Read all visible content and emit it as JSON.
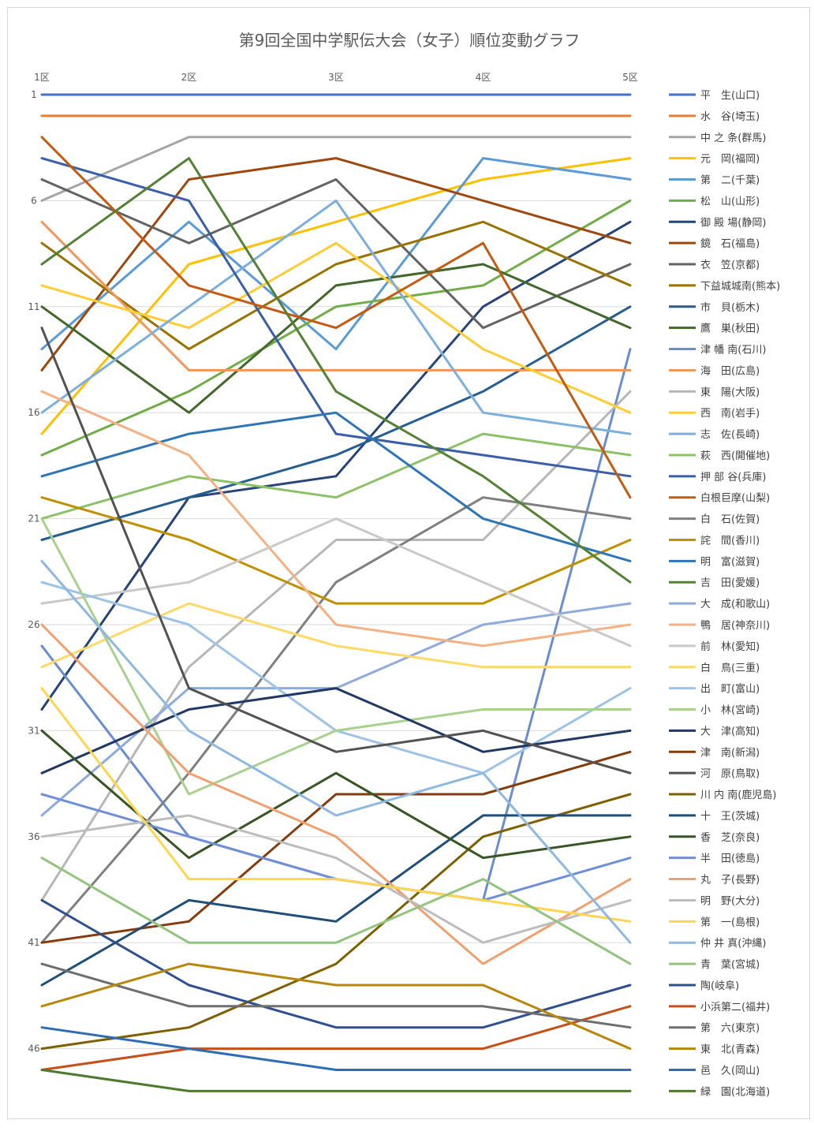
{
  "chart_data": {
    "type": "line",
    "title": "第9回全国中学駅伝大会（女子）順位変動グラフ",
    "categories": [
      "1区",
      "2区",
      "3区",
      "4区",
      "5区"
    ],
    "y_ticks": [
      "1",
      "6",
      "11",
      "16",
      "21",
      "26",
      "31",
      "36",
      "41",
      "46"
    ],
    "ylim": [
      1,
      48
    ],
    "y_reversed": true,
    "grid": true,
    "legend_position": "right",
    "series": [
      {
        "name": "平　生(山口)",
        "color": "#4472C4",
        "values": [
          1,
          1,
          1,
          1,
          1
        ]
      },
      {
        "name": "水　谷(埼玉)",
        "color": "#ED7D31",
        "values": [
          2,
          2,
          2,
          2,
          2
        ]
      },
      {
        "name": "中 之 条(群馬)",
        "color": "#A5A5A5",
        "values": [
          6,
          3,
          3,
          3,
          3
        ]
      },
      {
        "name": "元　岡(福岡)",
        "color": "#FFC000",
        "values": [
          17,
          9,
          7,
          5,
          4
        ]
      },
      {
        "name": "第　二(千葉)",
        "color": "#5B9BD5",
        "values": [
          13,
          7,
          13,
          4,
          5
        ]
      },
      {
        "name": "松　山(山形)",
        "color": "#70AD47",
        "values": [
          18,
          15,
          11,
          10,
          6
        ]
      },
      {
        "name": "御 殿 場(静岡)",
        "color": "#264478",
        "values": [
          30,
          20,
          19,
          11,
          7
        ]
      },
      {
        "name": "鏡　石(福島)",
        "color": "#9E480E",
        "values": [
          14,
          5,
          4,
          6,
          8
        ]
      },
      {
        "name": "衣　笠(京都)",
        "color": "#636363",
        "values": [
          5,
          8,
          5,
          12,
          9
        ]
      },
      {
        "name": "下益城城南(熊本)",
        "color": "#997300",
        "values": [
          8,
          13,
          9,
          7,
          10
        ]
      },
      {
        "name": "市　貝(栃木)",
        "color": "#255E91",
        "values": [
          22,
          20,
          18,
          15,
          11
        ]
      },
      {
        "name": "鷹　巣(秋田)",
        "color": "#43682B",
        "values": [
          11,
          16,
          10,
          9,
          12
        ]
      },
      {
        "name": "津 幡 南(石川)",
        "color": "#698ED0",
        "values": [
          27,
          36,
          38,
          39,
          13
        ]
      },
      {
        "name": "海　田(広島)",
        "color": "#F1975A",
        "values": [
          7,
          14,
          14,
          14,
          14
        ]
      },
      {
        "name": "東　陽(大阪)",
        "color": "#B7B7B7",
        "values": [
          39,
          28,
          22,
          22,
          15
        ]
      },
      {
        "name": "西　南(岩手)",
        "color": "#FFCD33",
        "values": [
          10,
          12,
          8,
          13,
          16
        ]
      },
      {
        "name": "志　佐(長崎)",
        "color": "#7CAFDD",
        "values": [
          16,
          11,
          6,
          16,
          17
        ]
      },
      {
        "name": "萩　西(開催地)",
        "color": "#8CC168",
        "values": [
          21,
          19,
          20,
          17,
          18
        ]
      },
      {
        "name": "押 部 谷(兵庫)",
        "color": "#3A5FA8",
        "values": [
          4,
          6,
          17,
          18,
          19
        ]
      },
      {
        "name": "白根巨摩(山梨)",
        "color": "#C55A11",
        "values": [
          3,
          10,
          12,
          8,
          20
        ]
      },
      {
        "name": "白　石(佐賀)",
        "color": "#7F7F7F",
        "values": [
          41,
          33,
          24,
          20,
          21
        ]
      },
      {
        "name": "詫　間(香川)",
        "color": "#BF9000",
        "values": [
          20,
          22,
          25,
          25,
          22
        ]
      },
      {
        "name": "明　富(滋賀)",
        "color": "#2E75B6",
        "values": [
          19,
          17,
          16,
          21,
          23
        ]
      },
      {
        "name": "吉　田(愛媛)",
        "color": "#548235",
        "values": [
          9,
          4,
          15,
          19,
          24
        ]
      },
      {
        "name": "大　成(和歌山)",
        "color": "#8FAADC",
        "values": [
          35,
          29,
          29,
          26,
          25
        ]
      },
      {
        "name": "鴨　居(神奈川)",
        "color": "#F4B183",
        "values": [
          15,
          18,
          26,
          27,
          26
        ]
      },
      {
        "name": "前　林(愛知)",
        "color": "#C9C9C9",
        "values": [
          25,
          24,
          21,
          24,
          27
        ]
      },
      {
        "name": "白　鳥(三重)",
        "color": "#FFD966",
        "values": [
          28,
          25,
          27,
          28,
          28
        ]
      },
      {
        "name": "出　町(富山)",
        "color": "#9DC3E6",
        "values": [
          24,
          26,
          31,
          33,
          29
        ]
      },
      {
        "name": "小　林(宮崎)",
        "color": "#A9D18E",
        "values": [
          21,
          34,
          31,
          30,
          30
        ]
      },
      {
        "name": "大　津(高知)",
        "color": "#203864",
        "values": [
          33,
          30,
          29,
          32,
          31
        ]
      },
      {
        "name": "津　南(新潟)",
        "color": "#843C0C",
        "values": [
          41,
          40,
          34,
          34,
          32
        ]
      },
      {
        "name": "河　原(鳥取)",
        "color": "#525252",
        "values": [
          12,
          29,
          32,
          31,
          33
        ]
      },
      {
        "name": "川 内 南(鹿児島)",
        "color": "#7F6000",
        "values": [
          46,
          45,
          42,
          36,
          34
        ]
      },
      {
        "name": "十　王(茨城)",
        "color": "#1F4E79",
        "values": [
          43,
          39,
          40,
          35,
          35
        ]
      },
      {
        "name": "香　芝(奈良)",
        "color": "#375623",
        "values": [
          31,
          37,
          33,
          37,
          36
        ]
      },
      {
        "name": "半　田(徳島)",
        "color": "#6F8FD6",
        "values": [
          34,
          36,
          38,
          39,
          37
        ]
      },
      {
        "name": "丸　子(長野)",
        "color": "#F0A070",
        "values": [
          26,
          33,
          36,
          42,
          38
        ]
      },
      {
        "name": "明　野(大分)",
        "color": "#BDBDBD",
        "values": [
          36,
          35,
          37,
          41,
          39
        ]
      },
      {
        "name": "第　一(島根)",
        "color": "#FFD54F",
        "values": [
          29,
          38,
          38,
          39,
          40
        ]
      },
      {
        "name": "仲 井 真(沖縄)",
        "color": "#8FB8E0",
        "values": [
          23,
          31,
          35,
          33,
          41
        ]
      },
      {
        "name": "青　葉(宮城)",
        "color": "#93C47D",
        "values": [
          37,
          41,
          41,
          38,
          42
        ]
      },
      {
        "name": "陶(岐阜)",
        "color": "#2F4F8F",
        "values": [
          39,
          43,
          45,
          45,
          43
        ]
      },
      {
        "name": "小浜第二(福井)",
        "color": "#C5501A",
        "values": [
          47,
          46,
          46,
          46,
          44
        ]
      },
      {
        "name": "第　六(東京)",
        "color": "#6E6E6E",
        "values": [
          42,
          44,
          44,
          44,
          45
        ]
      },
      {
        "name": "東　北(青森)",
        "color": "#B8860B",
        "values": [
          44,
          42,
          43,
          43,
          46
        ]
      },
      {
        "name": "邑　久(岡山)",
        "color": "#2E6DB4",
        "values": [
          45,
          46,
          47,
          47,
          47
        ]
      },
      {
        "name": "緑　園(北海道)",
        "color": "#4E7A2E",
        "values": [
          47,
          48,
          48,
          48,
          48
        ]
      }
    ]
  }
}
